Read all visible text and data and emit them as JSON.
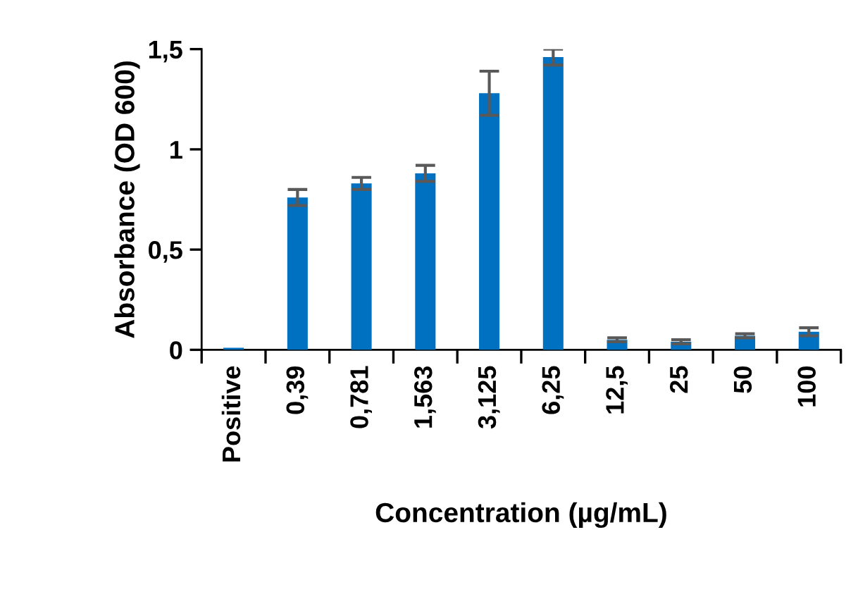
{
  "chart_data": {
    "type": "bar",
    "xlabel": "Concentration (µg/mL)",
    "ylabel": "Absorbance (OD 600)",
    "categories": [
      "Positive",
      "0,39",
      "0,781",
      "1,563",
      "3,125",
      "6,25",
      "12,5",
      "25",
      "50",
      "100"
    ],
    "values": [
      0.01,
      0.76,
      0.83,
      0.88,
      1.28,
      1.46,
      0.05,
      0.04,
      0.07,
      0.09
    ],
    "errors": [
      null,
      0.04,
      0.03,
      0.04,
      0.11,
      0.04,
      0.01,
      0.01,
      0.01,
      0.02
    ],
    "color": "#0070c0",
    "ylim": [
      0,
      1.5
    ],
    "yticks": [
      {
        "value": 0,
        "label": "0"
      },
      {
        "value": 0.5,
        "label": "0,5"
      },
      {
        "value": 1,
        "label": "1"
      },
      {
        "value": 1.5,
        "label": "1,5"
      }
    ],
    "grid": false,
    "legend": false
  }
}
